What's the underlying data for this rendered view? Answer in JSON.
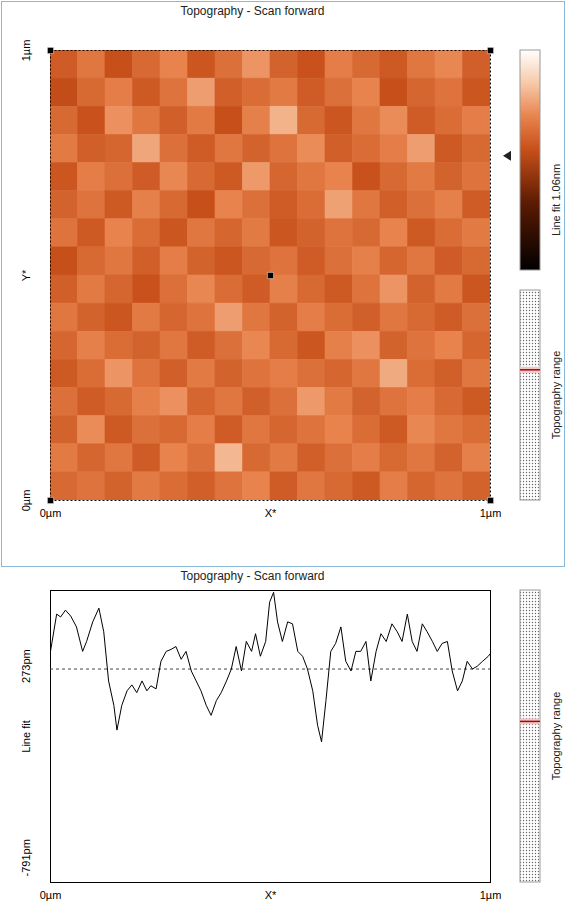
{
  "chart_data": [
    {
      "type": "heatmap",
      "title": "Topography - Scan forward",
      "xlabel": "X*",
      "ylabel": "Y*",
      "xlim": [
        0,
        1
      ],
      "ylim": [
        0,
        1
      ],
      "xticks": [
        {
          "value": 0,
          "label": "0µm"
        },
        {
          "value": 1,
          "label": "1µm"
        }
      ],
      "yticks": [
        {
          "value": 0,
          "label": "0µm"
        },
        {
          "value": 1,
          "label": "1µm"
        }
      ],
      "z": [
        [
          0.62,
          0.7,
          0.58,
          0.66,
          0.74,
          0.6,
          0.68,
          0.78,
          0.64,
          0.59,
          0.72,
          0.66,
          0.61,
          0.7,
          0.75,
          0.63
        ],
        [
          0.57,
          0.66,
          0.72,
          0.61,
          0.69,
          0.8,
          0.63,
          0.67,
          0.71,
          0.62,
          0.68,
          0.74,
          0.58,
          0.65,
          0.69,
          0.6
        ],
        [
          0.66,
          0.59,
          0.77,
          0.7,
          0.63,
          0.71,
          0.58,
          0.73,
          0.85,
          0.66,
          0.6,
          0.7,
          0.76,
          0.62,
          0.67,
          0.72
        ],
        [
          0.71,
          0.63,
          0.65,
          0.82,
          0.68,
          0.62,
          0.7,
          0.64,
          0.69,
          0.76,
          0.63,
          0.67,
          0.72,
          0.8,
          0.61,
          0.66
        ],
        [
          0.6,
          0.72,
          0.68,
          0.62,
          0.75,
          0.66,
          0.61,
          0.79,
          0.65,
          0.7,
          0.74,
          0.59,
          0.66,
          0.71,
          0.64,
          0.69
        ],
        [
          0.64,
          0.69,
          0.61,
          0.73,
          0.66,
          0.58,
          0.74,
          0.68,
          0.62,
          0.67,
          0.81,
          0.7,
          0.63,
          0.68,
          0.73,
          0.62
        ],
        [
          0.69,
          0.61,
          0.74,
          0.67,
          0.6,
          0.7,
          0.65,
          0.71,
          0.6,
          0.64,
          0.69,
          0.66,
          0.74,
          0.61,
          0.67,
          0.71
        ],
        [
          0.58,
          0.66,
          0.7,
          0.63,
          0.72,
          0.64,
          0.6,
          0.66,
          0.69,
          0.62,
          0.68,
          0.73,
          0.65,
          0.7,
          0.62,
          0.66
        ],
        [
          0.63,
          0.71,
          0.65,
          0.59,
          0.68,
          0.75,
          0.67,
          0.62,
          0.73,
          0.66,
          0.61,
          0.69,
          0.78,
          0.64,
          0.71,
          0.6
        ],
        [
          0.7,
          0.64,
          0.6,
          0.71,
          0.65,
          0.69,
          0.8,
          0.7,
          0.64,
          0.72,
          0.67,
          0.63,
          0.7,
          0.66,
          0.62,
          0.68
        ],
        [
          0.65,
          0.73,
          0.67,
          0.64,
          0.7,
          0.62,
          0.68,
          0.75,
          0.66,
          0.6,
          0.73,
          0.77,
          0.64,
          0.69,
          0.74,
          0.65
        ],
        [
          0.61,
          0.67,
          0.78,
          0.69,
          0.63,
          0.71,
          0.64,
          0.69,
          0.72,
          0.68,
          0.65,
          0.7,
          0.83,
          0.67,
          0.63,
          0.7
        ],
        [
          0.68,
          0.62,
          0.66,
          0.73,
          0.77,
          0.65,
          0.7,
          0.63,
          0.68,
          0.79,
          0.71,
          0.64,
          0.69,
          0.72,
          0.66,
          0.61
        ],
        [
          0.64,
          0.76,
          0.61,
          0.68,
          0.66,
          0.72,
          0.62,
          0.7,
          0.65,
          0.69,
          0.74,
          0.67,
          0.61,
          0.75,
          0.7,
          0.67
        ],
        [
          0.71,
          0.65,
          0.7,
          0.62,
          0.74,
          0.68,
          0.86,
          0.66,
          0.71,
          0.63,
          0.68,
          0.72,
          0.66,
          0.7,
          0.64,
          0.73
        ],
        [
          0.66,
          0.69,
          0.64,
          0.71,
          0.67,
          0.63,
          0.69,
          0.74,
          0.62,
          0.7,
          0.66,
          0.61,
          0.72,
          0.65,
          0.69,
          0.64
        ]
      ],
      "colorbar": {
        "range": [
          0,
          1.06
        ],
        "label": "Line fit 1.06nm",
        "marker": 0.55
      },
      "side_label": "Topography range"
    },
    {
      "type": "line",
      "title": "Topography - Scan forward",
      "xlabel": "X*",
      "ylabel": "Line fit",
      "xlim": [
        0,
        1
      ],
      "ylim": [
        -928,
        693
      ],
      "xticks": [
        {
          "value": 0,
          "label": "0µm"
        },
        {
          "value": 1,
          "label": "1µm"
        }
      ],
      "yticks": [
        {
          "value": 273,
          "label": "273pm"
        },
        {
          "value": -791,
          "label": "-791pm"
        }
      ],
      "color": "#000000",
      "dashed_line": 257,
      "x": [
        0,
        0.014,
        0.023,
        0.034,
        0.046,
        0.059,
        0.073,
        0.082,
        0.096,
        0.11,
        0.121,
        0.132,
        0.144,
        0.151,
        0.162,
        0.174,
        0.185,
        0.196,
        0.208,
        0.219,
        0.228,
        0.24,
        0.251,
        0.263,
        0.274,
        0.285,
        0.297,
        0.308,
        0.32,
        0.331,
        0.342,
        0.354,
        0.365,
        0.377,
        0.388,
        0.4,
        0.411,
        0.422,
        0.434,
        0.445,
        0.457,
        0.466,
        0.477,
        0.489,
        0.498,
        0.507,
        0.516,
        0.527,
        0.539,
        0.55,
        0.562,
        0.573,
        0.584,
        0.596,
        0.607,
        0.616,
        0.626,
        0.637,
        0.648,
        0.66,
        0.671,
        0.683,
        0.694,
        0.705,
        0.717,
        0.728,
        0.74,
        0.751,
        0.763,
        0.776,
        0.788,
        0.799,
        0.811,
        0.822,
        0.833,
        0.845,
        0.856,
        0.868,
        0.879,
        0.89,
        0.902,
        0.913,
        0.925,
        0.936,
        0.947,
        0.959,
        0.97,
        0.982,
        0.995,
        1
      ],
      "values": [
        355,
        562,
        546,
        584,
        551,
        491,
        355,
        410,
        519,
        595,
        464,
        191,
        55,
        -82,
        55,
        136,
        169,
        126,
        191,
        136,
        164,
        147,
        300,
        355,
        366,
        382,
        311,
        355,
        246,
        191,
        136,
        55,
        0,
        82,
        126,
        191,
        257,
        382,
        246,
        410,
        355,
        453,
        328,
        410,
        628,
        683,
        519,
        410,
        519,
        508,
        355,
        328,
        257,
        136,
        -55,
        -147,
        82,
        355,
        399,
        491,
        300,
        246,
        355,
        355,
        410,
        191,
        355,
        453,
        410,
        508,
        464,
        410,
        562,
        410,
        355,
        508,
        464,
        410,
        355,
        399,
        410,
        246,
        136,
        191,
        300,
        257,
        273,
        300,
        328,
        344
      ],
      "side_label": "Topography range"
    }
  ]
}
